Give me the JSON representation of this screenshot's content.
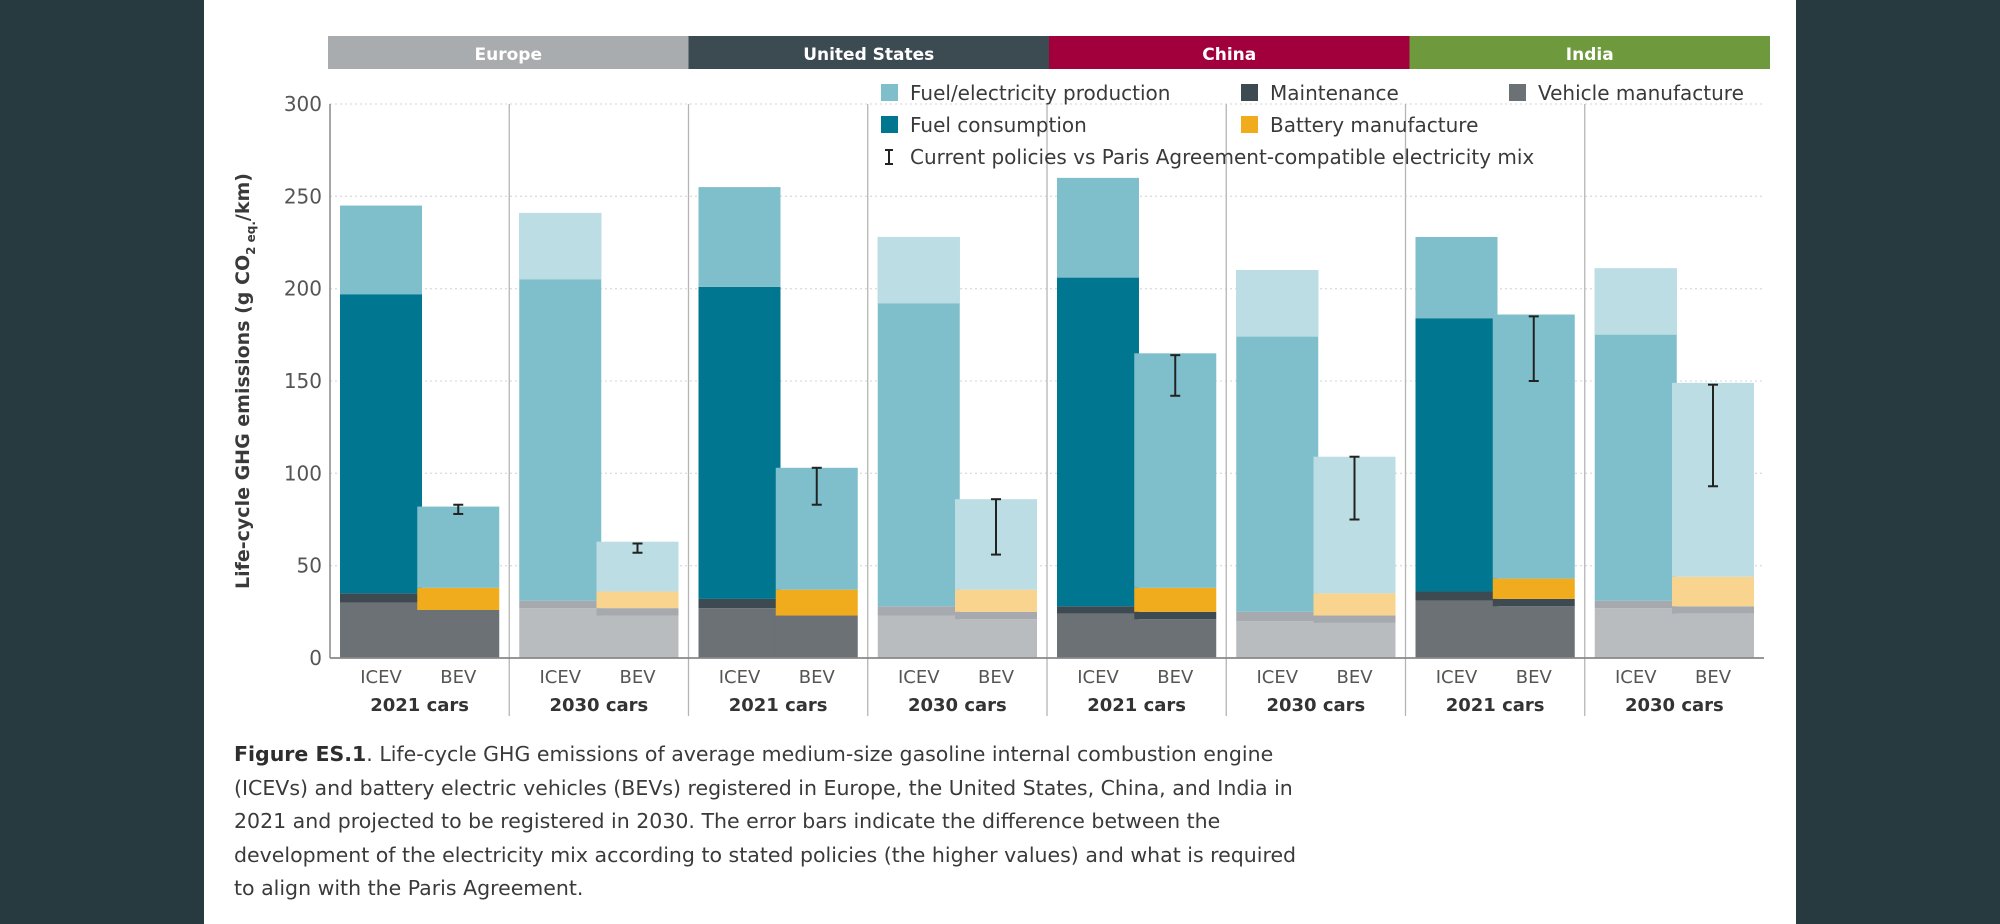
{
  "colors": {
    "fuel_production": "#7fbfcb",
    "fuel_production_light": "#bcdde3",
    "fuel_consumption": "#007690",
    "maintenance": "#3e4a52",
    "maintenance_light": "#a6aaae",
    "battery": "#f0ac1d",
    "battery_light": "#f8d48e",
    "vehicle": "#6c7176",
    "vehicle_light": "#b9bcbf",
    "gridline": "#dddddd",
    "axis": "#888888",
    "separator": "#b5b5b5",
    "text": "#555555"
  },
  "chart_data": {
    "type": "bar",
    "stacked": true,
    "ylabel_parts": [
      "Life-cycle GHG emissions (g CO",
      "2 eq.",
      "/km)"
    ],
    "ylim": [
      0,
      300
    ],
    "yticks": [
      0,
      50,
      100,
      150,
      200,
      250,
      300
    ],
    "grid": true,
    "legend_position": "top-right",
    "regions": [
      {
        "name": "Europe",
        "color": "#a9acaf"
      },
      {
        "name": "United States",
        "color": "#3c4a52"
      },
      {
        "name": "China",
        "color": "#a2003c"
      },
      {
        "name": "India",
        "color": "#6e9a3d"
      }
    ],
    "year_groups": [
      "2021 cars",
      "2030 cars"
    ],
    "categories": [
      "ICEV",
      "BEV"
    ],
    "series": [
      {
        "key": "vehicle",
        "name": "Vehicle manufacture"
      },
      {
        "key": "maintenance",
        "name": "Maintenance"
      },
      {
        "key": "battery",
        "name": "Battery manufacture"
      },
      {
        "key": "fuel_consumption",
        "name": "Fuel consumption"
      },
      {
        "key": "fuel_production",
        "name": "Fuel/electricity production"
      }
    ],
    "errorbar_label": "Current policies vs Paris Agreement-compatible electricity mix",
    "bars": [
      {
        "region": "Europe",
        "year": "2021 cars",
        "type": "ICEV",
        "vehicle": 30,
        "maintenance": 5,
        "battery": 0,
        "fuel_consumption": 162,
        "fuel_production": 48,
        "total": 245
      },
      {
        "region": "Europe",
        "year": "2021 cars",
        "type": "BEV",
        "vehicle": 26,
        "maintenance": 0,
        "battery": 12,
        "fuel_consumption": 0,
        "fuel_production": 44,
        "total": 82,
        "error": [
          78,
          83
        ]
      },
      {
        "region": "Europe",
        "year": "2030 cars",
        "type": "ICEV",
        "vehicle": 27,
        "maintenance": 4,
        "battery": 0,
        "fuel_consumption": 0,
        "fuel_production": 210,
        "total": 241
      },
      {
        "region": "Europe",
        "year": "2030 cars",
        "type": "BEV",
        "vehicle": 23,
        "maintenance": 4,
        "battery": 9,
        "fuel_consumption": 0,
        "fuel_production": 27,
        "total": 63,
        "error": [
          57,
          62
        ]
      },
      {
        "region": "United States",
        "year": "2021 cars",
        "type": "ICEV",
        "vehicle": 27,
        "maintenance": 5,
        "battery": 0,
        "fuel_consumption": 169,
        "fuel_production": 54,
        "total": 255
      },
      {
        "region": "United States",
        "year": "2021 cars",
        "type": "BEV",
        "vehicle": 23,
        "maintenance": 0,
        "battery": 14,
        "fuel_consumption": 0,
        "fuel_production": 66,
        "total": 103,
        "error": [
          83,
          103
        ]
      },
      {
        "region": "United States",
        "year": "2030 cars",
        "type": "ICEV",
        "vehicle": 23,
        "maintenance": 5,
        "battery": 0,
        "fuel_consumption": 0,
        "fuel_production": 200,
        "total": 228
      },
      {
        "region": "United States",
        "year": "2030 cars",
        "type": "BEV",
        "vehicle": 21,
        "maintenance": 4,
        "battery": 12,
        "fuel_consumption": 0,
        "fuel_production": 49,
        "total": 86,
        "error": [
          56,
          86
        ]
      },
      {
        "region": "China",
        "year": "2021 cars",
        "type": "ICEV",
        "vehicle": 24,
        "maintenance": 4,
        "battery": 0,
        "fuel_consumption": 178,
        "fuel_production": 54,
        "total": 260
      },
      {
        "region": "China",
        "year": "2021 cars",
        "type": "BEV",
        "vehicle": 21,
        "maintenance": 4,
        "battery": 13,
        "fuel_consumption": 0,
        "fuel_production": 127,
        "total": 165,
        "error": [
          142,
          164
        ]
      },
      {
        "region": "China",
        "year": "2030 cars",
        "type": "ICEV",
        "vehicle": 20,
        "maintenance": 5,
        "battery": 0,
        "fuel_consumption": 0,
        "fuel_production": 185,
        "total": 210
      },
      {
        "region": "China",
        "year": "2030 cars",
        "type": "BEV",
        "vehicle": 19,
        "maintenance": 4,
        "battery": 12,
        "fuel_consumption": 0,
        "fuel_production": 74,
        "total": 109,
        "error": [
          75,
          109
        ]
      },
      {
        "region": "India",
        "year": "2021 cars",
        "type": "ICEV",
        "vehicle": 31,
        "maintenance": 5,
        "battery": 0,
        "fuel_consumption": 148,
        "fuel_production": 44,
        "total": 228
      },
      {
        "region": "India",
        "year": "2021 cars",
        "type": "BEV",
        "vehicle": 28,
        "maintenance": 4,
        "battery": 11,
        "fuel_consumption": 0,
        "fuel_production": 143,
        "total": 186,
        "error": [
          150,
          185
        ]
      },
      {
        "region": "India",
        "year": "2030 cars",
        "type": "ICEV",
        "vehicle": 27,
        "maintenance": 4,
        "battery": 0,
        "fuel_consumption": 0,
        "fuel_production": 180,
        "total": 211
      },
      {
        "region": "India",
        "year": "2030 cars",
        "type": "BEV",
        "vehicle": 24,
        "maintenance": 4,
        "battery": 16,
        "fuel_consumption": 0,
        "fuel_production": 105,
        "total": 149,
        "error": [
          93,
          148
        ]
      }
    ]
  },
  "caption": {
    "label": "Figure ES.1",
    "text": ". Life-cycle GHG emissions of average medium-size gasoline internal combustion engine (ICEVs) and battery electric vehicles (BEVs) registered in Europe, the United States, China, and India in 2021 and projected to be registered in 2030. The error bars indicate the difference between the development of the electricity mix according to stated policies (the higher values) and what is required to align with the Paris Agreement."
  }
}
